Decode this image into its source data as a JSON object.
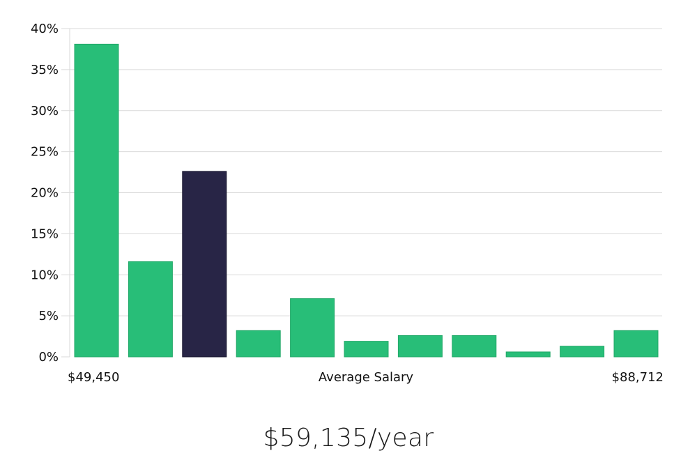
{
  "chart_data": {
    "type": "bar",
    "title": "",
    "xlabel": "Average Salary",
    "ylabel": "",
    "x_range_labels": {
      "min": "$49,450",
      "max": "$88,712"
    },
    "values": [
      38.1,
      11.6,
      22.6,
      3.2,
      7.1,
      1.9,
      2.6,
      2.6,
      0.6,
      1.3,
      3.2
    ],
    "highlight_index": 2,
    "ylim": [
      0,
      40
    ],
    "yticks": [
      0,
      5,
      10,
      15,
      20,
      25,
      30,
      35,
      40
    ],
    "ytick_suffix": "%",
    "grid": true,
    "colors": {
      "bar": "#28be78",
      "bar_border": "#22a868",
      "highlight": "#282546",
      "highlight_border": "#14122b"
    }
  },
  "summary": {
    "average_salary": "$59,135/year"
  }
}
